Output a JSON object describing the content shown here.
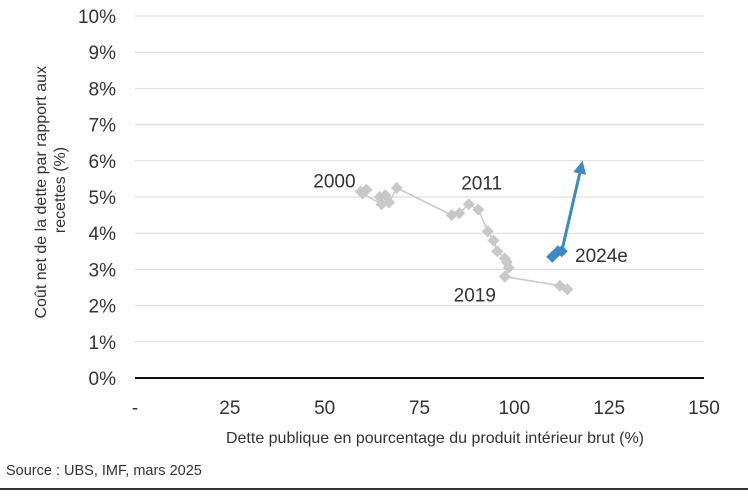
{
  "chart_data": {
    "type": "scatter",
    "xlabel": "Dette publique en pourcentage du produit intérieur brut (%)",
    "ylabel": "Coût net de la dette par rapport aux recettes (%)",
    "xlim": [
      0,
      150
    ],
    "ylim": [
      0,
      10
    ],
    "x_ticks": [
      {
        "value": 0,
        "label": "-"
      },
      {
        "value": 25,
        "label": "25"
      },
      {
        "value": 50,
        "label": "50"
      },
      {
        "value": 75,
        "label": "75"
      },
      {
        "value": 100,
        "label": "100"
      },
      {
        "value": 125,
        "label": "125"
      },
      {
        "value": 150,
        "label": "150"
      }
    ],
    "y_ticks": [
      {
        "value": 0,
        "label": "0%"
      },
      {
        "value": 1,
        "label": "1%"
      },
      {
        "value": 2,
        "label": "2%"
      },
      {
        "value": 3,
        "label": "3%"
      },
      {
        "value": 4,
        "label": "4%"
      },
      {
        "value": 5,
        "label": "5%"
      },
      {
        "value": 6,
        "label": "6%"
      },
      {
        "value": 7,
        "label": "7%"
      },
      {
        "value": 8,
        "label": "8%"
      },
      {
        "value": 9,
        "label": "9%"
      },
      {
        "value": 10,
        "label": "10%"
      }
    ],
    "grid": true,
    "series": [
      {
        "color": "#c8c8c8",
        "points": [
          {
            "x": 59.5,
            "y": 5.15
          },
          {
            "x": 61,
            "y": 5.2
          },
          {
            "x": 60,
            "y": 5.1
          },
          {
            "x": 65,
            "y": 4.8
          },
          {
            "x": 64.5,
            "y": 5.0
          },
          {
            "x": 66,
            "y": 5.05
          },
          {
            "x": 67,
            "y": 4.85
          },
          {
            "x": 69,
            "y": 5.25
          },
          {
            "x": 83.5,
            "y": 4.5
          },
          {
            "x": 85.5,
            "y": 4.55
          },
          {
            "x": 88,
            "y": 4.8
          },
          {
            "x": 90.5,
            "y": 4.65
          },
          {
            "x": 93,
            "y": 4.05
          },
          {
            "x": 94.5,
            "y": 3.8
          },
          {
            "x": 95.5,
            "y": 3.5
          },
          {
            "x": 97.5,
            "y": 3.3
          },
          {
            "x": 98,
            "y": 3.2
          },
          {
            "x": 98.5,
            "y": 3.05
          },
          {
            "x": 97.5,
            "y": 2.8
          },
          {
            "x": 112,
            "y": 2.55
          },
          {
            "x": 114,
            "y": 2.45
          }
        ]
      },
      {
        "color": "#3a8ac8",
        "points": [
          {
            "x": 110,
            "y": 3.35
          },
          {
            "x": 111.5,
            "y": 3.5
          },
          {
            "x": 112.5,
            "y": 3.5
          }
        ],
        "arrow_to": {
          "x": 118,
          "y": 6.0
        }
      }
    ],
    "annotations": [
      {
        "text": "2000",
        "x": 47,
        "y": 5.45
      },
      {
        "text": "2011",
        "x": 86,
        "y": 5.4
      },
      {
        "text": "2024e",
        "x": 116,
        "y": 3.4
      },
      {
        "text": "2019",
        "x": 84,
        "y": 2.3
      }
    ]
  },
  "source": "Source : UBS, IMF, mars 2025"
}
